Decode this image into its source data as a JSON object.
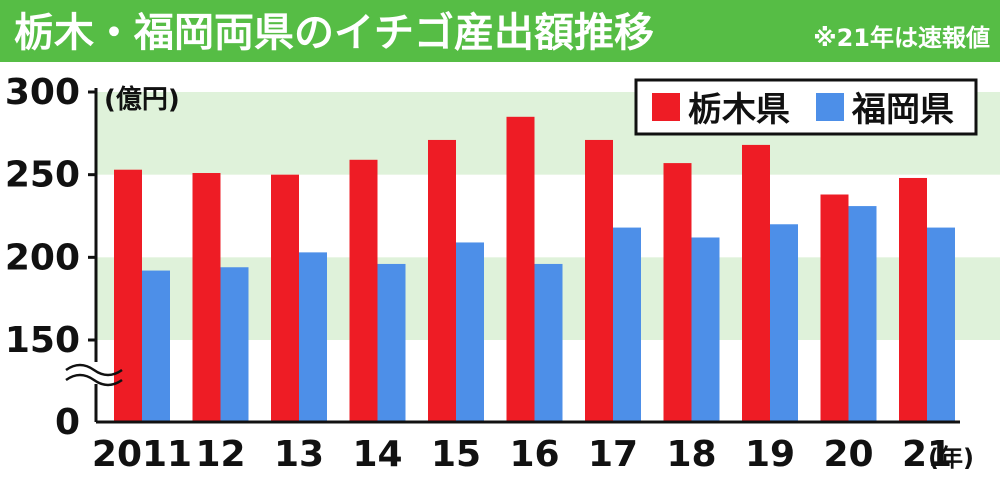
{
  "chart_data": {
    "type": "bar",
    "title": "栃木・福岡両県のイチゴ産出額推移",
    "note": "※21年は速報値",
    "ylabel": "(億円)",
    "xunit": "(年)",
    "categories": [
      "2011",
      "12",
      "13",
      "14",
      "15",
      "16",
      "17",
      "18",
      "19",
      "20",
      "21"
    ],
    "series": [
      {
        "name": "栃木県",
        "color": "#ee1c25",
        "values": [
          253,
          251,
          250,
          259,
          271,
          285,
          271,
          257,
          268,
          238,
          248
        ]
      },
      {
        "name": "福岡県",
        "color": "#4d8fe8",
        "values": [
          192,
          194,
          203,
          196,
          209,
          196,
          218,
          212,
          220,
          231,
          218
        ]
      }
    ],
    "ylim": [
      0,
      300
    ],
    "yticks": [
      "0",
      "150",
      "200",
      "250",
      "300"
    ],
    "axis_break": true,
    "grid": "alternating bands",
    "legend": "top-right",
    "colors": {
      "title_bg": "#56bd45",
      "band": "#dff2da"
    }
  }
}
